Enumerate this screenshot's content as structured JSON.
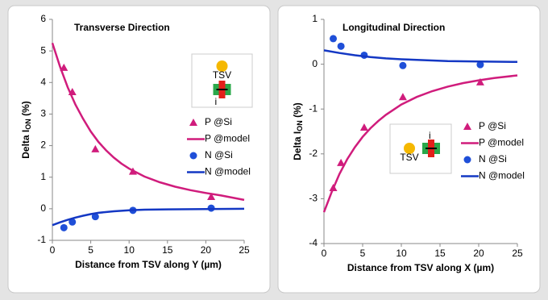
{
  "chart_data": [
    {
      "type": "line",
      "title": "Transverse Direction",
      "ylabel": [
        "Delta I",
        "ON",
        " (%)"
      ],
      "xlabel": "Distance from TSV along Y (µm)",
      "xlim": [
        0,
        25
      ],
      "xticks": [
        0,
        5,
        10,
        15,
        20,
        25
      ],
      "ylim": [
        -1,
        6
      ],
      "yticks": [
        -1,
        0,
        1,
        2,
        3,
        4,
        5,
        6
      ],
      "inset": {
        "tsv": "TSV",
        "current": "i"
      },
      "series": [
        {
          "name": "P @Si",
          "marker": "triangle",
          "color": "#d01c7c",
          "x": [
            1.5,
            2.6,
            5.6,
            10.5,
            20.7
          ],
          "values": [
            4.47,
            3.7,
            1.89,
            1.18,
            0.38
          ]
        },
        {
          "name": "P @model",
          "marker": "none",
          "color": "#d01c7c",
          "x": [
            0,
            1,
            2,
            3,
            4,
            5,
            6,
            7,
            8,
            9,
            10,
            12,
            14,
            16,
            18,
            20,
            22,
            25
          ],
          "values": [
            5.25,
            4.5,
            3.85,
            3.3,
            2.85,
            2.45,
            2.12,
            1.85,
            1.62,
            1.43,
            1.27,
            1.02,
            0.84,
            0.7,
            0.59,
            0.5,
            0.42,
            0.28
          ]
        },
        {
          "name": "N @Si",
          "marker": "circle",
          "color": "#1f4fd8",
          "x": [
            1.5,
            2.6,
            5.6,
            10.5,
            20.7
          ],
          "values": [
            -0.6,
            -0.42,
            -0.25,
            -0.05,
            0.02
          ]
        },
        {
          "name": "N @model",
          "marker": "none",
          "color": "#1438c4",
          "x": [
            0,
            1,
            2,
            3,
            4,
            5,
            6,
            8,
            10,
            12,
            15,
            20,
            25
          ],
          "values": [
            -0.52,
            -0.43,
            -0.35,
            -0.28,
            -0.22,
            -0.17,
            -0.13,
            -0.08,
            -0.05,
            -0.03,
            -0.02,
            -0.01,
            0
          ]
        }
      ]
    },
    {
      "type": "line",
      "title": "Longitudinal Direction",
      "ylabel": [
        "Delta I",
        "ON",
        " (%)"
      ],
      "xlabel": "Distance from TSV along X (µm)",
      "xlim": [
        0,
        25
      ],
      "xticks": [
        0,
        5,
        10,
        15,
        20,
        25
      ],
      "ylim": [
        -4,
        1
      ],
      "yticks": [
        -4,
        -3,
        -2,
        -1,
        0,
        1
      ],
      "inset": {
        "tsv": "TSV",
        "current": "i"
      },
      "series": [
        {
          "name": "P @Si",
          "marker": "triangle",
          "color": "#d01c7c",
          "x": [
            1.2,
            2.2,
            5.2,
            10.2,
            20.2
          ],
          "values": [
            -2.76,
            -2.2,
            -1.41,
            -0.73,
            -0.4
          ]
        },
        {
          "name": "P @model",
          "marker": "none",
          "color": "#d01c7c",
          "x": [
            0,
            1,
            2,
            3,
            4,
            5,
            6,
            7,
            8,
            10,
            12,
            14,
            16,
            18,
            20,
            22,
            25
          ],
          "values": [
            -3.3,
            -2.85,
            -2.45,
            -2.12,
            -1.85,
            -1.62,
            -1.43,
            -1.27,
            -1.13,
            -0.9,
            -0.73,
            -0.6,
            -0.5,
            -0.42,
            -0.36,
            -0.31,
            -0.25
          ]
        },
        {
          "name": "N @Si",
          "marker": "circle",
          "color": "#1f4fd8",
          "x": [
            1.2,
            2.2,
            5.2,
            10.2,
            20.2
          ],
          "values": [
            0.57,
            0.4,
            0.2,
            -0.03,
            -0.01
          ]
        },
        {
          "name": "N @model",
          "marker": "none",
          "color": "#1438c4",
          "x": [
            0,
            2,
            4,
            6,
            8,
            10,
            13,
            16,
            20,
            25
          ],
          "values": [
            0.31,
            0.25,
            0.2,
            0.16,
            0.13,
            0.11,
            0.09,
            0.07,
            0.06,
            0.05
          ]
        }
      ]
    }
  ]
}
